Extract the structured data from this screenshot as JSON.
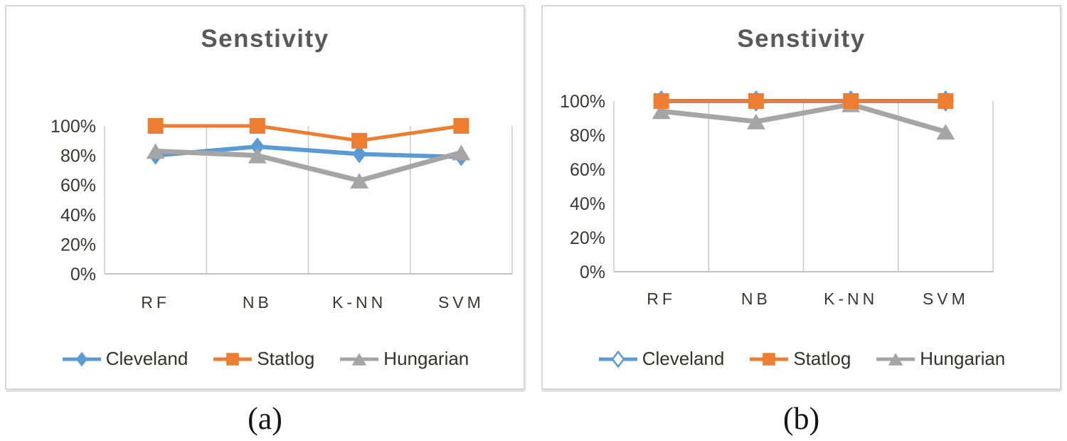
{
  "chart_data": [
    {
      "panel": "a",
      "type": "line",
      "title": "Senstivity",
      "caption": "(a)",
      "categories": [
        "RF",
        "NB",
        "K-NN",
        "SVM"
      ],
      "y_ticks": [
        "100%",
        "80%",
        "60%",
        "40%",
        "20%",
        "0%"
      ],
      "y_tick_values": [
        100,
        80,
        60,
        40,
        20,
        0
      ],
      "ylim": [
        0,
        100
      ],
      "y_unit": "%",
      "grid": "vertical-only",
      "legend_position": "bottom",
      "series": [
        {
          "name": "Cleveland",
          "color": "#5B9BD5",
          "marker": "diamond",
          "marker_fill": "solid",
          "values": [
            80,
            86,
            81,
            79
          ]
        },
        {
          "name": "Statlog",
          "color": "#ED7D31",
          "marker": "square",
          "marker_fill": "solid",
          "values": [
            100,
            100,
            90,
            100
          ]
        },
        {
          "name": "Hungarian",
          "color": "#A5A5A5",
          "marker": "triangle",
          "marker_fill": "solid",
          "values": [
            83,
            80,
            63,
            82
          ]
        }
      ]
    },
    {
      "panel": "b",
      "type": "line",
      "title": "Senstivity",
      "caption": "(b)",
      "categories": [
        "RF",
        "NB",
        "K-NN",
        "SVM"
      ],
      "y_ticks": [
        "100%",
        "80%",
        "60%",
        "40%",
        "20%",
        "0%"
      ],
      "y_tick_values": [
        100,
        80,
        60,
        40,
        20,
        0
      ],
      "ylim": [
        0,
        100
      ],
      "y_unit": "%",
      "grid": "vertical-only",
      "legend_position": "bottom",
      "series": [
        {
          "name": "Cleveland",
          "color": "#5B9BD5",
          "marker": "diamond",
          "marker_fill": "hollow",
          "values": [
            100,
            100,
            100,
            100
          ]
        },
        {
          "name": "Statlog",
          "color": "#ED7D31",
          "marker": "square",
          "marker_fill": "solid",
          "values": [
            100,
            100,
            100,
            100
          ]
        },
        {
          "name": "Hungarian",
          "color": "#A5A5A5",
          "marker": "triangle",
          "marker_fill": "solid",
          "values": [
            94,
            88,
            98,
            82
          ]
        }
      ]
    }
  ]
}
